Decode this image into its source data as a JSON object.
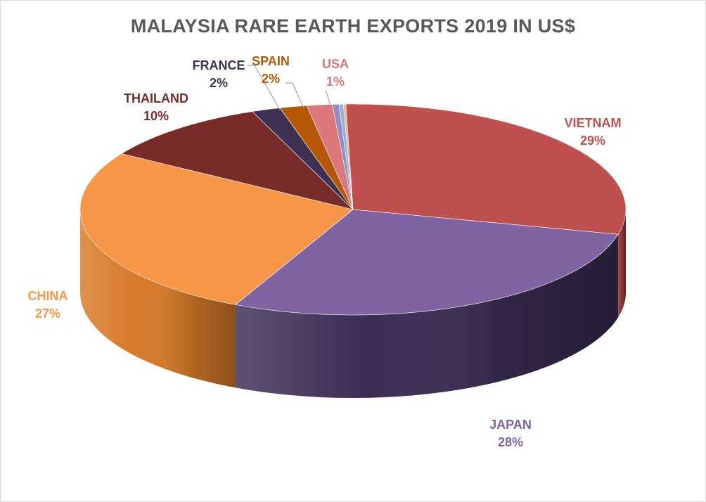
{
  "chart_data": {
    "type": "pie",
    "title": "MALAYSIA RARE EARTH EXPORTS 2019 IN US$",
    "style": "3d-pie",
    "data_labels": "category and percentage",
    "slices": [
      {
        "label": "VIETNAM",
        "percent_label": "29%",
        "value": 29.2,
        "color": "#c0504d",
        "side_color": "#8c3230"
      },
      {
        "label": "JAPAN",
        "percent_label": "28%",
        "value": 28.3,
        "color": "#8064a2",
        "side_color": "#3b2c52"
      },
      {
        "label": "CHINA",
        "percent_label": "27%",
        "value": 26.8,
        "color": "#f79646",
        "side_color": "#d77a28"
      },
      {
        "label": "THAILAND",
        "percent_label": "10%",
        "value": 10.1,
        "color": "#772c2a",
        "side_color": "#4e1b1a"
      },
      {
        "label": "FRANCE",
        "percent_label": "2%",
        "value": 1.7,
        "color": "#3f3151",
        "side_color": "#2a2037"
      },
      {
        "label": "SPAIN",
        "percent_label": "2%",
        "value": 1.6,
        "color": "#b65708",
        "side_color": "#7e3c05"
      },
      {
        "label": "USA",
        "percent_label": "1%",
        "value": 1.5,
        "color": "#d9777a",
        "side_color": "#a55457"
      },
      {
        "label": "",
        "percent_label": "",
        "value": 0.4,
        "color": "#9a8bc0",
        "side_color": "#6b5f8a"
      },
      {
        "label": "",
        "percent_label": "",
        "value": 0.25,
        "color": "#8db3e2",
        "side_color": "#6285ad"
      },
      {
        "label": "",
        "percent_label": "",
        "value": 0.15,
        "color": "#f4b183",
        "side_color": "#c4835a"
      }
    ]
  }
}
